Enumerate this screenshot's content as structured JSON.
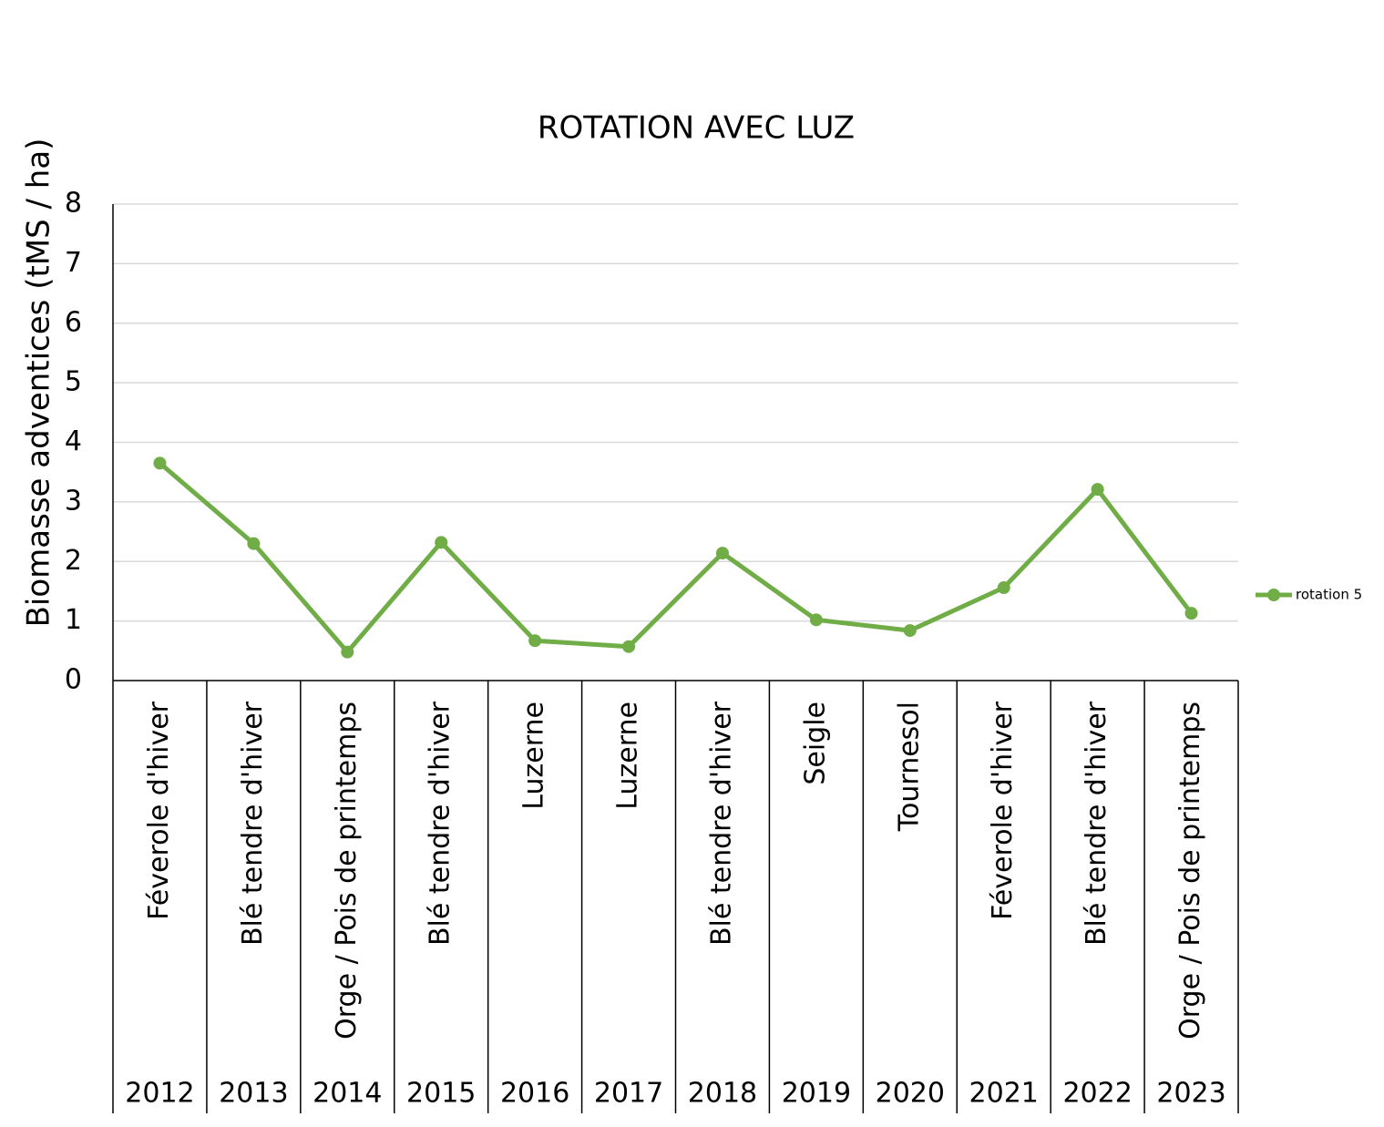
{
  "chart_data": {
    "type": "line",
    "title": "ROTATION AVEC LUZ",
    "y_label": "Biomasse adventices (tMS / ha)",
    "categories": [
      "2012",
      "2013",
      "2014",
      "2015",
      "2016",
      "2017",
      "2018",
      "2019",
      "2020",
      "2021",
      "2022",
      "2023"
    ],
    "crops": [
      "Féverole d'hiver",
      "Blé tendre d'hiver",
      "Orge / Pois de printemps",
      "Blé tendre d'hiver",
      "Luzerne",
      "Luzerne",
      "Blé tendre d'hiver",
      "Seigle",
      "Tournesol",
      "Féverole d'hiver",
      "Blé tendre d'hiver",
      "Orge / Pois de printemps"
    ],
    "series": [
      {
        "name": "rotation 5",
        "color": "#70ad47",
        "values": [
          3.65,
          2.3,
          0.48,
          2.32,
          0.67,
          0.57,
          2.14,
          1.02,
          0.84,
          1.56,
          3.21,
          1.13
        ]
      }
    ],
    "ylim": [
      0,
      8
    ],
    "yticks": [
      0,
      1,
      2,
      3,
      4,
      5,
      6,
      7,
      8
    ],
    "grid": true,
    "legend": "right"
  }
}
